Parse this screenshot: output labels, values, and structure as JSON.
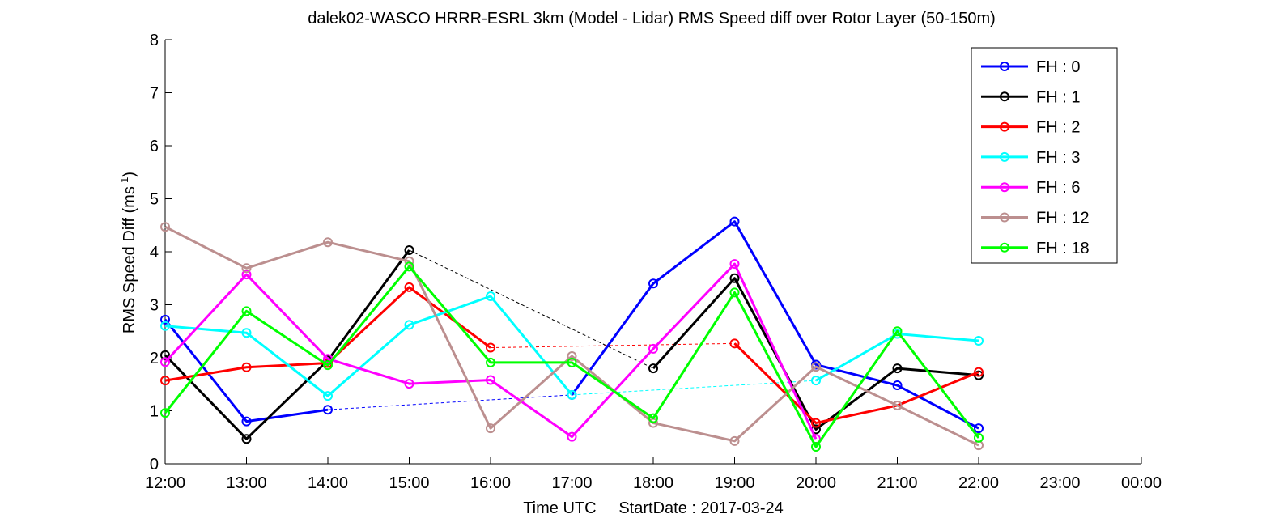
{
  "chart_data": {
    "type": "line",
    "title": "dalek02-WASCO HRRR-ESRL 3km (Model - Lidar) RMS Speed diff over Rotor Layer (50-150m)",
    "xlabel": "Time UTC     StartDate : 2017-03-24",
    "ylabel": "RMS Speed Diff (ms",
    "ylabel_sup": "-1",
    "ylabel_tail": ")",
    "x_ticks": [
      "12:00",
      "13:00",
      "14:00",
      "15:00",
      "16:00",
      "17:00",
      "18:00",
      "19:00",
      "20:00",
      "21:00",
      "22:00",
      "23:00",
      "00:00"
    ],
    "xlim": [
      12,
      24
    ],
    "ylim": [
      0,
      8
    ],
    "y_ticks": [
      "0",
      "1",
      "2",
      "3",
      "4",
      "5",
      "6",
      "7",
      "8"
    ],
    "grid": false,
    "legend_position": "top-right",
    "series": [
      {
        "name": "FH : 0",
        "color": "#0000ff",
        "x": [
          12,
          13,
          14,
          17,
          18,
          19,
          20,
          21,
          22
        ],
        "values": [
          2.72,
          0.8,
          1.02,
          1.3,
          3.4,
          4.57,
          1.87,
          1.48,
          0.67
        ]
      },
      {
        "name": "FH : 1",
        "color": "#000000",
        "x": [
          12,
          13,
          14,
          15,
          18,
          19,
          20,
          21,
          22
        ],
        "values": [
          2.05,
          0.47,
          1.95,
          4.03,
          1.8,
          3.5,
          0.65,
          1.8,
          1.67
        ]
      },
      {
        "name": "FH : 2",
        "color": "#ff0000",
        "x": [
          12,
          13,
          14,
          15,
          16,
          19,
          20,
          21,
          22
        ],
        "values": [
          1.57,
          1.82,
          1.9,
          3.33,
          2.19,
          2.27,
          0.77,
          1.1,
          1.73
        ]
      },
      {
        "name": "FH : 3",
        "color": "#00ffff",
        "x": [
          12,
          13,
          14,
          15,
          16,
          17,
          20,
          21,
          22
        ],
        "values": [
          2.6,
          2.47,
          1.28,
          2.62,
          3.16,
          1.3,
          1.57,
          2.45,
          2.32
        ]
      },
      {
        "name": "FH : 6",
        "color": "#ff00ff",
        "x": [
          12,
          13,
          14,
          15,
          16,
          17,
          18,
          19,
          20
        ],
        "values": [
          1.92,
          3.57,
          1.98,
          1.51,
          1.58,
          0.51,
          2.17,
          3.77,
          0.47
        ]
      },
      {
        "name": "FH : 12",
        "color": "#bc8f8f",
        "x": [
          12,
          13,
          14,
          15,
          16,
          17,
          18,
          19,
          20,
          21,
          22
        ],
        "values": [
          4.47,
          3.69,
          4.18,
          3.82,
          0.67,
          2.03,
          0.77,
          0.43,
          1.83,
          1.1,
          0.35
        ]
      },
      {
        "name": "FH : 18",
        "color": "#00ff00",
        "x": [
          12,
          13,
          14,
          15,
          16,
          17,
          18,
          19,
          20,
          21,
          22
        ],
        "values": [
          0.96,
          2.88,
          1.86,
          3.72,
          1.91,
          1.91,
          0.86,
          3.23,
          0.32,
          2.5,
          0.49
        ]
      }
    ],
    "gap_links": [
      {
        "series": "FH : 0",
        "color": "#0000ff",
        "from": [
          14,
          1.02
        ],
        "to": [
          17,
          1.3
        ]
      },
      {
        "series": "FH : 1",
        "color": "#000000",
        "from": [
          15,
          4.03
        ],
        "to": [
          18,
          1.8
        ]
      },
      {
        "series": "FH : 2",
        "color": "#ff0000",
        "from": [
          16,
          2.19
        ],
        "to": [
          19,
          2.27
        ]
      },
      {
        "series": "FH : 3",
        "color": "#00ffff",
        "from": [
          17,
          1.3
        ],
        "to": [
          20,
          1.57
        ]
      }
    ]
  }
}
